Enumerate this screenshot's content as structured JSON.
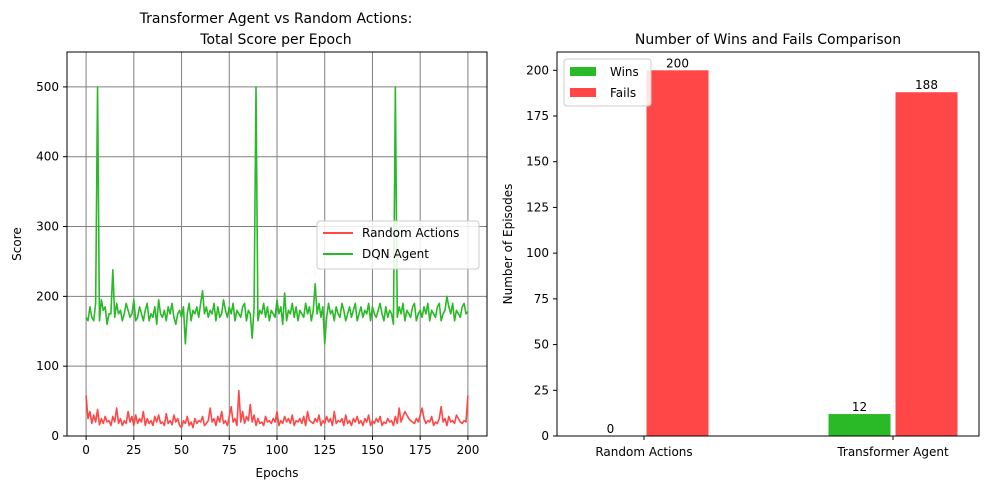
{
  "chart_data": [
    {
      "type": "line",
      "title_line1": "Transformer Agent vs Random Actions:",
      "title_line2": "Total Score per Epoch",
      "xlabel": "Epochs",
      "ylabel": "Score",
      "xlim": [
        -10,
        210
      ],
      "ylim": [
        0,
        550
      ],
      "x_ticks": [
        0,
        25,
        50,
        75,
        100,
        125,
        150,
        175,
        200
      ],
      "y_ticks": [
        0,
        100,
        200,
        300,
        400,
        500
      ],
      "grid": true,
      "legend_position": "center-right",
      "series": [
        {
          "name": "Random Actions",
          "color": "#ff4747",
          "values": [
            58,
            25,
            35,
            18,
            30,
            20,
            38,
            16,
            25,
            18,
            28,
            20,
            22,
            15,
            28,
            20,
            40,
            18,
            25,
            15,
            22,
            18,
            35,
            20,
            28,
            15,
            30,
            18,
            25,
            20,
            35,
            15,
            25,
            18,
            22,
            15,
            28,
            20,
            30,
            18,
            20,
            15,
            32,
            18,
            22,
            16,
            30,
            20,
            25,
            15,
            12,
            22,
            18,
            28,
            15,
            20,
            12,
            25,
            18,
            22,
            20,
            28,
            15,
            18,
            22,
            40,
            20,
            25,
            15,
            28,
            20,
            35,
            18,
            22,
            15,
            28,
            42,
            20,
            25,
            15,
            65,
            20,
            35,
            18,
            28,
            22,
            45,
            20,
            30,
            15,
            25,
            18,
            20,
            15,
            28,
            20,
            22,
            18,
            25,
            20,
            35,
            15,
            22,
            18,
            28,
            20,
            25,
            18,
            30,
            15,
            22,
            20,
            25,
            18,
            28,
            15,
            35,
            22,
            20,
            18,
            25,
            20,
            30,
            15,
            22,
            18,
            28,
            20,
            25,
            15,
            35,
            18,
            22,
            20,
            25,
            15,
            30,
            18,
            22,
            15,
            25,
            20,
            28,
            18,
            22,
            15,
            25,
            20,
            30,
            15,
            22,
            18,
            25,
            20,
            28,
            15,
            20,
            18,
            25,
            20,
            22,
            15,
            28,
            18,
            40,
            20,
            28,
            35,
            30,
            25,
            22,
            20,
            18,
            25,
            20,
            30,
            40,
            25,
            18,
            22,
            20,
            28,
            15,
            20,
            18,
            25,
            42,
            20,
            25,
            15,
            28,
            20,
            22,
            18,
            30,
            25,
            20,
            18,
            22,
            20,
            58
          ],
          "peak_lookup": {
            "0": 58,
            "80": 65,
            "199": 58
          }
        },
        {
          "name": "DQN Agent",
          "color": "#2ab927",
          "values": [
            170,
            165,
            185,
            170,
            165,
            190,
            500,
            165,
            195,
            180,
            185,
            160,
            175,
            175,
            238,
            170,
            190,
            175,
            180,
            165,
            175,
            190,
            180,
            170,
            175,
            195,
            165,
            170,
            185,
            175,
            165,
            180,
            190,
            165,
            175,
            170,
            185,
            160,
            195,
            175,
            170,
            180,
            165,
            185,
            175,
            190,
            170,
            160,
            175,
            180,
            170,
            185,
            132,
            175,
            190,
            165,
            180,
            175,
            185,
            170,
            190,
            208,
            175,
            185,
            170,
            180,
            175,
            190,
            165,
            185,
            170,
            175,
            195,
            180,
            170,
            185,
            175,
            190,
            165,
            180,
            175,
            170,
            185,
            190,
            165,
            180,
            175,
            140,
            185,
            500,
            165,
            180,
            175,
            190,
            170,
            185,
            165,
            180,
            175,
            170,
            195,
            175,
            185,
            160,
            205,
            165,
            180,
            175,
            190,
            170,
            185,
            165,
            180,
            175,
            170,
            190,
            175,
            185,
            165,
            180,
            218,
            175,
            190,
            170,
            185,
            132,
            170,
            190,
            175,
            180,
            165,
            185,
            175,
            170,
            190,
            180,
            165,
            175,
            185,
            170,
            180,
            190,
            165,
            175,
            185,
            170,
            180,
            175,
            190,
            165,
            185,
            175,
            170,
            180,
            190,
            175,
            165,
            185,
            170,
            180,
            175,
            160,
            500,
            170,
            185,
            175,
            190,
            165,
            180,
            175,
            170,
            185,
            190,
            165,
            175,
            180,
            170,
            185,
            175,
            190,
            165,
            180,
            175,
            170,
            185,
            190,
            165,
            175,
            180,
            200,
            185,
            175,
            190,
            165,
            180,
            175,
            170,
            185,
            190,
            175,
            178
          ]
        }
      ]
    },
    {
      "type": "bar",
      "title": "Number of Wins and Fails Comparison",
      "xlabel": "",
      "ylabel": "Number of Episodes",
      "categories": [
        "Random Actions",
        "Transformer Agent"
      ],
      "ylim": [
        0,
        210
      ],
      "y_ticks": [
        0,
        25,
        50,
        75,
        100,
        125,
        150,
        175,
        200
      ],
      "grid": false,
      "legend_position": "top-left",
      "series": [
        {
          "name": "Wins",
          "color": "#2ab927",
          "values": [
            0,
            12
          ]
        },
        {
          "name": "Fails",
          "color": "#ff4747",
          "values": [
            200,
            188
          ]
        }
      ]
    }
  ]
}
